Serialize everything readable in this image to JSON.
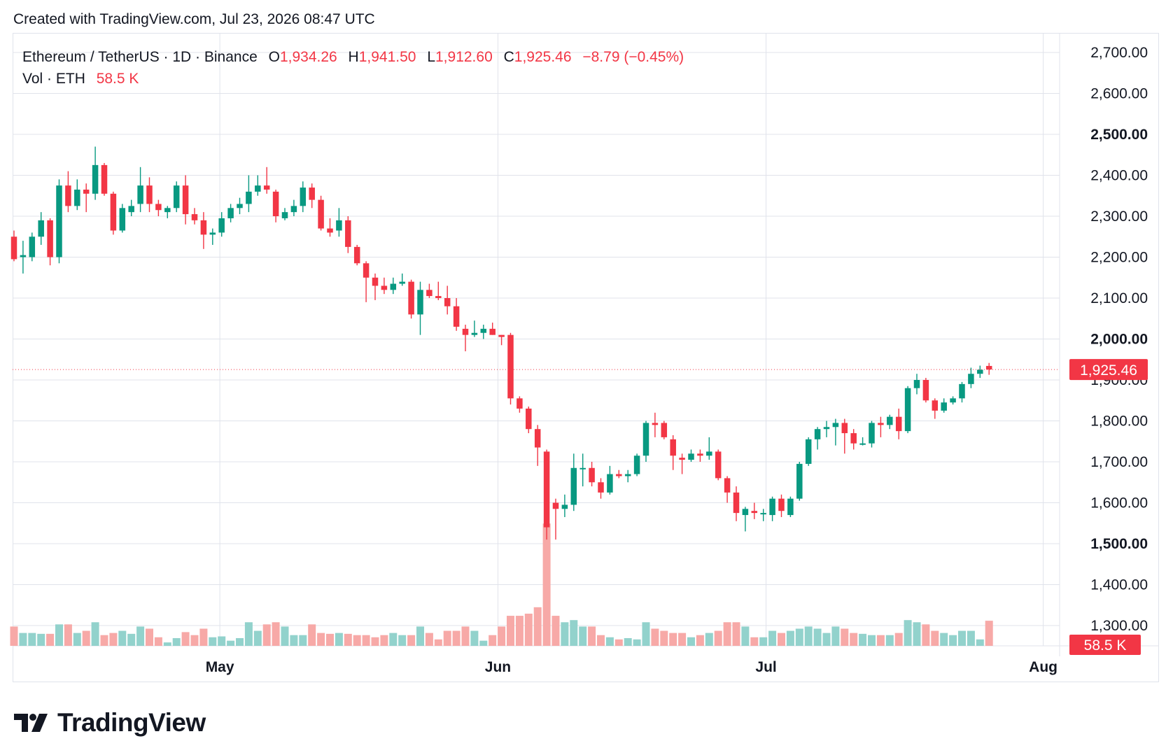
{
  "header": {
    "created_text": "Created with TradingView.com, Jul 23, 2026 08:47 UTC"
  },
  "legend": {
    "symbol": "Ethereum / TetherUS · 1D · Binance",
    "o_label": "O",
    "o_value": "1,934.26",
    "h_label": "H",
    "h_value": "1,941.50",
    "l_label": "L",
    "l_value": "1,912.60",
    "c_label": "C",
    "c_value": "1,925.46",
    "change": "−8.79 (−0.45%)",
    "vol_label": "Vol · ETH",
    "vol_value": "58.5 K"
  },
  "price_tag": "1,925.46",
  "volume_tag": "58.5 K",
  "logo_text": "TradingView",
  "colors": {
    "up": "#089981",
    "down": "#f23645",
    "up_volume": "#92d2cc",
    "down_volume": "#f7a9a7",
    "grid": "#e0e3eb",
    "text": "#131722"
  },
  "chart_data": {
    "type": "candlestick",
    "title": "Ethereum / TetherUS · 1D · Binance",
    "price_axis": {
      "ticks": [
        1300,
        1400,
        1500,
        1600,
        1700,
        1800,
        1900,
        2000,
        2100,
        2200,
        2300,
        2400,
        2500,
        2600,
        2700
      ],
      "tick_labels": [
        "1,300.00",
        "1,400.00",
        "1,500.00",
        "1,600.00",
        "1,700.00",
        "1,800.00",
        "1,900.00",
        "2,000.00",
        "2,100.00",
        "2,200.00",
        "2,300.00",
        "2,400.00",
        "2,500.00",
        "2,600.00",
        "2,700.00"
      ],
      "bold": [
        "2,000.00",
        "2,500.00",
        "1,500.00"
      ],
      "range": [
        1250,
        2750
      ]
    },
    "x_axis": {
      "labels": [
        "May",
        "Jun",
        "Jul",
        "Aug"
      ],
      "label_index": [
        22.8,
        53.6,
        83.3,
        114
      ]
    },
    "last_price": 1925.46,
    "volume_scale_max": 150000,
    "candles": [
      {
        "o": 2250,
        "h": 2265,
        "l": 2190,
        "c": 2195,
        "v": 45000
      },
      {
        "o": 2200,
        "h": 2240,
        "l": 2160,
        "c": 2205,
        "v": 30000
      },
      {
        "o": 2200,
        "h": 2260,
        "l": 2190,
        "c": 2250,
        "v": 30000
      },
      {
        "o": 2250,
        "h": 2310,
        "l": 2230,
        "c": 2290,
        "v": 28000
      },
      {
        "o": 2290,
        "h": 2295,
        "l": 2180,
        "c": 2200,
        "v": 28000
      },
      {
        "o": 2200,
        "h": 2390,
        "l": 2185,
        "c": 2375,
        "v": 50000
      },
      {
        "o": 2375,
        "h": 2410,
        "l": 2310,
        "c": 2325,
        "v": 50000
      },
      {
        "o": 2325,
        "h": 2390,
        "l": 2315,
        "c": 2365,
        "v": 30000
      },
      {
        "o": 2365,
        "h": 2380,
        "l": 2310,
        "c": 2355,
        "v": 35000
      },
      {
        "o": 2355,
        "h": 2470,
        "l": 2340,
        "c": 2425,
        "v": 55000
      },
      {
        "o": 2425,
        "h": 2430,
        "l": 2350,
        "c": 2355,
        "v": 25000
      },
      {
        "o": 2355,
        "h": 2360,
        "l": 2255,
        "c": 2265,
        "v": 30000
      },
      {
        "o": 2265,
        "h": 2330,
        "l": 2260,
        "c": 2320,
        "v": 35000
      },
      {
        "o": 2310,
        "h": 2340,
        "l": 2300,
        "c": 2325,
        "v": 28000
      },
      {
        "o": 2330,
        "h": 2420,
        "l": 2310,
        "c": 2375,
        "v": 45000
      },
      {
        "o": 2375,
        "h": 2395,
        "l": 2310,
        "c": 2330,
        "v": 40000
      },
      {
        "o": 2330,
        "h": 2340,
        "l": 2300,
        "c": 2315,
        "v": 20000
      },
      {
        "o": 2310,
        "h": 2325,
        "l": 2295,
        "c": 2320,
        "v": 8000
      },
      {
        "o": 2320,
        "h": 2385,
        "l": 2310,
        "c": 2375,
        "v": 18000
      },
      {
        "o": 2375,
        "h": 2400,
        "l": 2280,
        "c": 2305,
        "v": 32000
      },
      {
        "o": 2305,
        "h": 2320,
        "l": 2280,
        "c": 2290,
        "v": 25000
      },
      {
        "o": 2290,
        "h": 2310,
        "l": 2220,
        "c": 2255,
        "v": 40000
      },
      {
        "o": 2255,
        "h": 2270,
        "l": 2230,
        "c": 2260,
        "v": 20000
      },
      {
        "o": 2260,
        "h": 2310,
        "l": 2250,
        "c": 2295,
        "v": 22000
      },
      {
        "o": 2295,
        "h": 2330,
        "l": 2285,
        "c": 2320,
        "v": 12000
      },
      {
        "o": 2320,
        "h": 2345,
        "l": 2305,
        "c": 2330,
        "v": 18000
      },
      {
        "o": 2330,
        "h": 2400,
        "l": 2310,
        "c": 2360,
        "v": 55000
      },
      {
        "o": 2360,
        "h": 2400,
        "l": 2350,
        "c": 2375,
        "v": 35000
      },
      {
        "o": 2375,
        "h": 2420,
        "l": 2355,
        "c": 2365,
        "v": 50000
      },
      {
        "o": 2360,
        "h": 2365,
        "l": 2285,
        "c": 2300,
        "v": 55000
      },
      {
        "o": 2295,
        "h": 2320,
        "l": 2290,
        "c": 2310,
        "v": 45000
      },
      {
        "o": 2310,
        "h": 2340,
        "l": 2300,
        "c": 2325,
        "v": 25000
      },
      {
        "o": 2325,
        "h": 2385,
        "l": 2310,
        "c": 2370,
        "v": 25000
      },
      {
        "o": 2370,
        "h": 2380,
        "l": 2320,
        "c": 2340,
        "v": 50000
      },
      {
        "o": 2340,
        "h": 2350,
        "l": 2265,
        "c": 2270,
        "v": 30000
      },
      {
        "o": 2270,
        "h": 2295,
        "l": 2250,
        "c": 2260,
        "v": 28000
      },
      {
        "o": 2265,
        "h": 2320,
        "l": 2250,
        "c": 2290,
        "v": 30000
      },
      {
        "o": 2290,
        "h": 2300,
        "l": 2210,
        "c": 2225,
        "v": 28000
      },
      {
        "o": 2225,
        "h": 2230,
        "l": 2180,
        "c": 2185,
        "v": 25000
      },
      {
        "o": 2185,
        "h": 2190,
        "l": 2090,
        "c": 2150,
        "v": 25000
      },
      {
        "o": 2150,
        "h": 2160,
        "l": 2095,
        "c": 2130,
        "v": 20000
      },
      {
        "o": 2130,
        "h": 2150,
        "l": 2110,
        "c": 2120,
        "v": 25000
      },
      {
        "o": 2120,
        "h": 2150,
        "l": 2110,
        "c": 2135,
        "v": 30000
      },
      {
        "o": 2135,
        "h": 2160,
        "l": 2130,
        "c": 2140,
        "v": 25000
      },
      {
        "o": 2140,
        "h": 2145,
        "l": 2050,
        "c": 2060,
        "v": 25000
      },
      {
        "o": 2060,
        "h": 2140,
        "l": 2010,
        "c": 2120,
        "v": 45000
      },
      {
        "o": 2120,
        "h": 2135,
        "l": 2100,
        "c": 2105,
        "v": 30000
      },
      {
        "o": 2105,
        "h": 2140,
        "l": 2095,
        "c": 2100,
        "v": 15000
      },
      {
        "o": 2100,
        "h": 2130,
        "l": 2060,
        "c": 2080,
        "v": 35000
      },
      {
        "o": 2080,
        "h": 2100,
        "l": 2020,
        "c": 2030,
        "v": 35000
      },
      {
        "o": 2025,
        "h": 2035,
        "l": 1970,
        "c": 2010,
        "v": 45000
      },
      {
        "o": 2010,
        "h": 2045,
        "l": 2005,
        "c": 2015,
        "v": 35000
      },
      {
        "o": 2015,
        "h": 2035,
        "l": 2000,
        "c": 2025,
        "v": 12000
      },
      {
        "o": 2025,
        "h": 2040,
        "l": 2010,
        "c": 2010,
        "v": 25000
      },
      {
        "o": 2010,
        "h": 2010,
        "l": 1985,
        "c": 2005,
        "v": 45000
      },
      {
        "o": 2010,
        "h": 2015,
        "l": 1840,
        "c": 1855,
        "v": 70000
      },
      {
        "o": 1855,
        "h": 1860,
        "l": 1820,
        "c": 1830,
        "v": 70000
      },
      {
        "o": 1830,
        "h": 1835,
        "l": 1770,
        "c": 1780,
        "v": 75000
      },
      {
        "o": 1780,
        "h": 1790,
        "l": 1690,
        "c": 1735,
        "v": 90000
      },
      {
        "o": 1725,
        "h": 1730,
        "l": 1510,
        "c": 1540,
        "v": 285000
      },
      {
        "o": 1600,
        "h": 1610,
        "l": 1510,
        "c": 1585,
        "v": 70000
      },
      {
        "o": 1585,
        "h": 1620,
        "l": 1565,
        "c": 1595,
        "v": 55000
      },
      {
        "o": 1595,
        "h": 1720,
        "l": 1580,
        "c": 1685,
        "v": 60000
      },
      {
        "o": 1685,
        "h": 1720,
        "l": 1640,
        "c": 1685,
        "v": 45000
      },
      {
        "o": 1685,
        "h": 1700,
        "l": 1640,
        "c": 1650,
        "v": 45000
      },
      {
        "o": 1650,
        "h": 1660,
        "l": 1610,
        "c": 1625,
        "v": 25000
      },
      {
        "o": 1625,
        "h": 1690,
        "l": 1620,
        "c": 1670,
        "v": 20000
      },
      {
        "o": 1670,
        "h": 1680,
        "l": 1660,
        "c": 1665,
        "v": 15000
      },
      {
        "o": 1665,
        "h": 1680,
        "l": 1650,
        "c": 1670,
        "v": 18000
      },
      {
        "o": 1670,
        "h": 1720,
        "l": 1665,
        "c": 1715,
        "v": 15000
      },
      {
        "o": 1715,
        "h": 1800,
        "l": 1700,
        "c": 1795,
        "v": 55000
      },
      {
        "o": 1795,
        "h": 1820,
        "l": 1760,
        "c": 1790,
        "v": 40000
      },
      {
        "o": 1795,
        "h": 1800,
        "l": 1755,
        "c": 1760,
        "v": 35000
      },
      {
        "o": 1755,
        "h": 1765,
        "l": 1680,
        "c": 1715,
        "v": 30000
      },
      {
        "o": 1710,
        "h": 1720,
        "l": 1670,
        "c": 1705,
        "v": 30000
      },
      {
        "o": 1705,
        "h": 1730,
        "l": 1700,
        "c": 1720,
        "v": 20000
      },
      {
        "o": 1720,
        "h": 1730,
        "l": 1700,
        "c": 1715,
        "v": 25000
      },
      {
        "o": 1715,
        "h": 1760,
        "l": 1705,
        "c": 1725,
        "v": 30000
      },
      {
        "o": 1725,
        "h": 1730,
        "l": 1655,
        "c": 1660,
        "v": 35000
      },
      {
        "o": 1660,
        "h": 1665,
        "l": 1600,
        "c": 1625,
        "v": 55000
      },
      {
        "o": 1625,
        "h": 1640,
        "l": 1555,
        "c": 1575,
        "v": 55000
      },
      {
        "o": 1570,
        "h": 1590,
        "l": 1530,
        "c": 1585,
        "v": 45000
      },
      {
        "o": 1580,
        "h": 1600,
        "l": 1560,
        "c": 1575,
        "v": 20000
      },
      {
        "o": 1575,
        "h": 1585,
        "l": 1555,
        "c": 1575,
        "v": 20000
      },
      {
        "o": 1570,
        "h": 1615,
        "l": 1555,
        "c": 1610,
        "v": 35000
      },
      {
        "o": 1610,
        "h": 1620,
        "l": 1565,
        "c": 1580,
        "v": 30000
      },
      {
        "o": 1570,
        "h": 1615,
        "l": 1565,
        "c": 1610,
        "v": 35000
      },
      {
        "o": 1610,
        "h": 1700,
        "l": 1605,
        "c": 1695,
        "v": 40000
      },
      {
        "o": 1695,
        "h": 1760,
        "l": 1690,
        "c": 1755,
        "v": 45000
      },
      {
        "o": 1755,
        "h": 1785,
        "l": 1730,
        "c": 1780,
        "v": 40000
      },
      {
        "o": 1780,
        "h": 1800,
        "l": 1760,
        "c": 1785,
        "v": 30000
      },
      {
        "o": 1785,
        "h": 1805,
        "l": 1740,
        "c": 1795,
        "v": 45000
      },
      {
        "o": 1795,
        "h": 1805,
        "l": 1720,
        "c": 1770,
        "v": 40000
      },
      {
        "o": 1770,
        "h": 1780,
        "l": 1730,
        "c": 1745,
        "v": 30000
      },
      {
        "o": 1745,
        "h": 1760,
        "l": 1740,
        "c": 1745,
        "v": 28000
      },
      {
        "o": 1745,
        "h": 1800,
        "l": 1735,
        "c": 1795,
        "v": 25000
      },
      {
        "o": 1795,
        "h": 1810,
        "l": 1760,
        "c": 1790,
        "v": 25000
      },
      {
        "o": 1790,
        "h": 1815,
        "l": 1780,
        "c": 1810,
        "v": 25000
      },
      {
        "o": 1810,
        "h": 1830,
        "l": 1755,
        "c": 1775,
        "v": 30000
      },
      {
        "o": 1775,
        "h": 1885,
        "l": 1770,
        "c": 1880,
        "v": 60000
      },
      {
        "o": 1880,
        "h": 1915,
        "l": 1865,
        "c": 1900,
        "v": 55000
      },
      {
        "o": 1900,
        "h": 1905,
        "l": 1845,
        "c": 1850,
        "v": 50000
      },
      {
        "o": 1850,
        "h": 1855,
        "l": 1805,
        "c": 1825,
        "v": 35000
      },
      {
        "o": 1825,
        "h": 1855,
        "l": 1820,
        "c": 1845,
        "v": 30000
      },
      {
        "o": 1845,
        "h": 1860,
        "l": 1840,
        "c": 1855,
        "v": 25000
      },
      {
        "o": 1855,
        "h": 1895,
        "l": 1845,
        "c": 1890,
        "v": 35000
      },
      {
        "o": 1890,
        "h": 1930,
        "l": 1880,
        "c": 1915,
        "v": 35000
      },
      {
        "o": 1915,
        "h": 1935,
        "l": 1905,
        "c": 1925,
        "v": 15000
      },
      {
        "o": 1934.26,
        "h": 1941.5,
        "l": 1912.6,
        "c": 1925.46,
        "v": 58500
      }
    ]
  }
}
